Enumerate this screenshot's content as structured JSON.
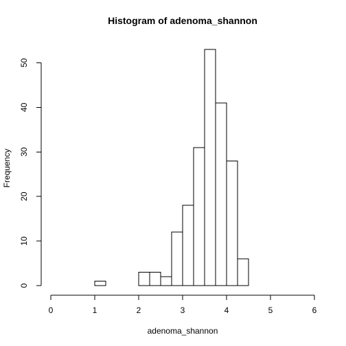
{
  "chart_data": {
    "type": "bar",
    "title": "Histogram of adenoma_shannon",
    "xlabel": "adenoma_shannon",
    "ylabel": "Frequency",
    "bin_width": 0.25,
    "bin_starts": [
      0,
      0.25,
      0.5,
      0.75,
      1.0,
      1.25,
      1.5,
      1.75,
      2.0,
      2.25,
      2.5,
      2.75,
      3.0,
      3.25,
      3.5,
      3.75,
      4.0,
      4.25,
      4.5,
      4.75,
      5.0,
      5.25,
      5.5,
      5.75
    ],
    "values": [
      0,
      0,
      0,
      0,
      1,
      0,
      0,
      0,
      3,
      3,
      2,
      12,
      18,
      31,
      53,
      41,
      28,
      6,
      0,
      0,
      0,
      0,
      0,
      0
    ],
    "xlim": [
      0,
      6
    ],
    "ylim": [
      0,
      53
    ],
    "x_ticks": [
      "0",
      "1",
      "2",
      "3",
      "4",
      "5",
      "6"
    ],
    "y_ticks": [
      "0",
      "10",
      "20",
      "30",
      "40",
      "50"
    ],
    "grid": false
  }
}
